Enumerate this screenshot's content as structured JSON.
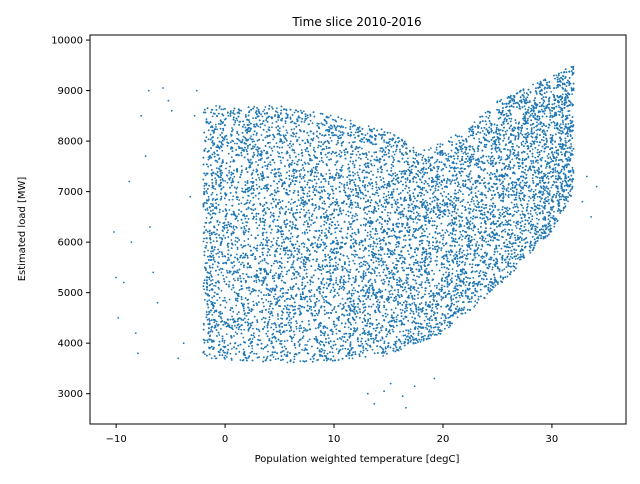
{
  "chart_data": {
    "type": "scatter",
    "title": "Time slice 2010-2016",
    "xlabel": "Population weighted temperature [degC]",
    "ylabel": "Estimated load [MW]",
    "xlim": [
      -12.4,
      36.8
    ],
    "ylim": [
      2400,
      10100
    ],
    "xticks": [
      -10,
      0,
      10,
      20,
      30
    ],
    "yticks": [
      3000,
      4000,
      5000,
      6000,
      7000,
      8000,
      9000,
      10000
    ],
    "color": "#1f77b4",
    "grid": false,
    "legend": "none",
    "series": [
      {
        "envelope": {
          "dense_x_range": [
            -2,
            32
          ],
          "lower_y": [
            [
              -2,
              3700
            ],
            [
              5,
              3600
            ],
            [
              10,
              3650
            ],
            [
              15,
              3750
            ],
            [
              20,
              4200
            ],
            [
              25,
              5100
            ],
            [
              30,
              6200
            ],
            [
              32,
              7000
            ]
          ],
          "upper_y": [
            [
              -2,
              8700
            ],
            [
              5,
              8700
            ],
            [
              10,
              8500
            ],
            [
              15,
              8200
            ],
            [
              18,
              7800
            ],
            [
              22,
              8200
            ],
            [
              25,
              8800
            ],
            [
              30,
              9300
            ],
            [
              33,
              9600
            ]
          ]
        },
        "outliers": [
          [
            -10.2,
            6200
          ],
          [
            -10.0,
            5300
          ],
          [
            -9.8,
            4500
          ],
          [
            -9.3,
            5200
          ],
          [
            -8.8,
            7200
          ],
          [
            -8.6,
            6000
          ],
          [
            -8.2,
            4200
          ],
          [
            -8.0,
            3800
          ],
          [
            -7.7,
            8500
          ],
          [
            -7.3,
            7700
          ],
          [
            -7.0,
            9000
          ],
          [
            -6.9,
            6300
          ],
          [
            -6.6,
            5400
          ],
          [
            -6.2,
            4800
          ],
          [
            -5.7,
            9050
          ],
          [
            -5.2,
            8800
          ],
          [
            -4.9,
            8600
          ],
          [
            -4.3,
            3700
          ],
          [
            -3.8,
            4000
          ],
          [
            -3.2,
            6900
          ],
          [
            -2.8,
            8500
          ],
          [
            -2.6,
            9000
          ],
          [
            13.1,
            3000
          ],
          [
            13.7,
            2800
          ],
          [
            14.6,
            3050
          ],
          [
            15.2,
            3200
          ],
          [
            16.3,
            2950
          ],
          [
            16.6,
            2720
          ],
          [
            17.4,
            3150
          ],
          [
            19.2,
            3300
          ],
          [
            33.2,
            7300
          ],
          [
            33.6,
            6500
          ],
          [
            34.1,
            7100
          ],
          [
            32.8,
            6800
          ]
        ]
      }
    ]
  }
}
